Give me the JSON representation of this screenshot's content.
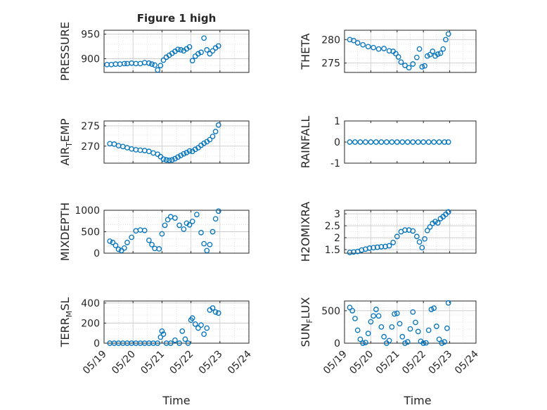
{
  "title": "Figure 1 high",
  "x_axis_label": "Time",
  "x_ticks": [
    "05/19",
    "05/20",
    "05/21",
    "05/22",
    "05/23",
    "05/24"
  ],
  "marker_color": "#0072BD",
  "chart_data": [
    {
      "type": "scatter",
      "ylabel": "PRESSURE",
      "ylabel_sub": null,
      "yticks": [
        900,
        950
      ],
      "ylim": [
        872,
        958
      ],
      "xlim": [
        0,
        5
      ],
      "grid": true,
      "x": [
        0.1,
        0.25,
        0.4,
        0.55,
        0.7,
        0.8,
        0.95,
        1.1,
        1.25,
        1.4,
        1.55,
        1.65,
        1.75,
        1.85,
        1.95,
        2.05,
        2.15,
        2.25,
        2.35,
        2.45,
        2.55,
        2.65,
        2.75,
        2.85,
        2.95,
        3.05,
        3.15,
        3.25,
        3.35,
        3.45,
        3.55,
        3.65,
        3.75,
        3.85,
        3.95
      ],
      "values": [
        888,
        888,
        889,
        889,
        890,
        890,
        891,
        890,
        890,
        892,
        891,
        889,
        887,
        877,
        886,
        897,
        903,
        907,
        911,
        915,
        919,
        918,
        916,
        920,
        924,
        896,
        905,
        910,
        913,
        942,
        918,
        910,
        916,
        922,
        926
      ]
    },
    {
      "type": "scatter",
      "ylabel": "THETA",
      "ylabel_sub": null,
      "yticks": [
        275,
        280
      ],
      "ylim": [
        273,
        282
      ],
      "xlim": [
        0,
        5
      ],
      "grid": true,
      "x": [
        0.2,
        0.35,
        0.5,
        0.7,
        0.9,
        1.1,
        1.3,
        1.5,
        1.7,
        1.85,
        1.95,
        2.05,
        2.15,
        2.3,
        2.45,
        2.6,
        2.75,
        2.85,
        2.95,
        3.05,
        3.15,
        3.25,
        3.35,
        3.45,
        3.55,
        3.65,
        3.75,
        3.85,
        3.95
      ],
      "values": [
        280.0,
        279.8,
        279.3,
        278.9,
        278.5,
        278.3,
        278.0,
        278.1,
        277.6,
        277.5,
        277.0,
        276.3,
        275.2,
        274.5,
        274.0,
        274.8,
        276.2,
        278.0,
        274.2,
        274.4,
        276.5,
        276.8,
        277.5,
        276.5,
        276.9,
        277.1,
        278.0,
        280.0,
        281.2
      ]
    },
    {
      "type": "scatter",
      "ylabel": "AIR",
      "ylabel_sub": "T",
      "ylabel_rest": "EMP",
      "yticks": [
        270,
        275
      ],
      "ylim": [
        265.8,
        276.2
      ],
      "xlim": [
        0,
        5
      ],
      "grid": true,
      "x": [
        0.2,
        0.35,
        0.5,
        0.65,
        0.8,
        0.95,
        1.1,
        1.25,
        1.4,
        1.55,
        1.7,
        1.85,
        1.95,
        2.05,
        2.15,
        2.25,
        2.35,
        2.45,
        2.55,
        2.65,
        2.75,
        2.85,
        2.95,
        3.05,
        3.15,
        3.25,
        3.35,
        3.45,
        3.55,
        3.65,
        3.75,
        3.85,
        3.95
      ],
      "values": [
        270.6,
        270.5,
        270.1,
        269.9,
        269.6,
        269.3,
        269.1,
        269.0,
        268.9,
        268.7,
        268.3,
        268.0,
        267.4,
        266.8,
        266.6,
        266.5,
        266.6,
        266.9,
        267.3,
        267.7,
        268.1,
        268.4,
        268.8,
        268.7,
        269.2,
        269.6,
        270.2,
        270.7,
        271.1,
        271.6,
        272.4,
        273.6,
        275.2
      ]
    },
    {
      "type": "scatter",
      "ylabel": "RAINFALL",
      "ylabel_sub": null,
      "yticks": [
        -1,
        0,
        1
      ],
      "ylim": [
        -1,
        1
      ],
      "xlim": [
        0,
        5
      ],
      "grid": false,
      "x": [
        0.2,
        0.4,
        0.6,
        0.8,
        1.0,
        1.2,
        1.4,
        1.6,
        1.8,
        2.0,
        2.2,
        2.4,
        2.6,
        2.8,
        3.0,
        3.2,
        3.4,
        3.6,
        3.8,
        3.95
      ],
      "values": [
        0,
        0,
        0,
        0,
        0,
        0,
        0,
        0,
        0,
        0,
        0,
        0,
        0,
        0,
        0,
        0,
        0,
        0,
        0,
        0
      ]
    },
    {
      "type": "scatter",
      "ylabel": "MIXDEPTH",
      "ylabel_sub": null,
      "yticks": [
        0,
        500,
        1000
      ],
      "ylim": [
        0,
        1000
      ],
      "xlim": [
        0,
        5
      ],
      "grid": true,
      "x": [
        0.2,
        0.3,
        0.4,
        0.5,
        0.6,
        0.7,
        0.8,
        0.95,
        1.1,
        1.25,
        1.4,
        1.55,
        1.65,
        1.75,
        1.9,
        2.0,
        2.1,
        2.2,
        2.3,
        2.45,
        2.6,
        2.75,
        2.85,
        2.95,
        3.05,
        3.2,
        3.35,
        3.45,
        3.55,
        3.65,
        3.75,
        3.85,
        3.95
      ],
      "values": [
        280,
        250,
        180,
        90,
        60,
        120,
        250,
        370,
        520,
        540,
        530,
        300,
        200,
        110,
        100,
        450,
        650,
        780,
        850,
        820,
        650,
        560,
        700,
        660,
        740,
        900,
        480,
        220,
        60,
        200,
        500,
        800,
        980
      ]
    },
    {
      "type": "scatter",
      "ylabel": "H2OMIXRA",
      "ylabel_sub": null,
      "yticks": [
        1.5,
        2,
        2.5,
        3
      ],
      "ylim": [
        1.35,
        3.15
      ],
      "xlim": [
        0,
        5
      ],
      "grid": true,
      "x": [
        0.2,
        0.35,
        0.5,
        0.65,
        0.8,
        0.95,
        1.1,
        1.25,
        1.4,
        1.55,
        1.7,
        1.85,
        2.0,
        2.15,
        2.3,
        2.45,
        2.6,
        2.75,
        2.85,
        2.95,
        3.05,
        3.15,
        3.25,
        3.35,
        3.45,
        3.55,
        3.65,
        3.75,
        3.85,
        3.95
      ],
      "values": [
        1.38,
        1.4,
        1.42,
        1.48,
        1.52,
        1.56,
        1.58,
        1.6,
        1.62,
        1.63,
        1.66,
        1.8,
        2.05,
        2.25,
        2.32,
        2.32,
        2.28,
        2.05,
        1.82,
        1.58,
        1.95,
        2.3,
        2.45,
        2.6,
        2.68,
        2.62,
        2.8,
        2.88,
        2.98,
        3.08
      ]
    },
    {
      "type": "scatter",
      "ylabel": "TERR",
      "ylabel_sub": "M",
      "ylabel_rest": "SL",
      "yticks": [
        0,
        200,
        400
      ],
      "ylim": [
        0,
        420
      ],
      "xlim": [
        0,
        5
      ],
      "grid": true,
      "x": [
        0.2,
        0.35,
        0.5,
        0.65,
        0.8,
        0.95,
        1.1,
        1.25,
        1.4,
        1.55,
        1.7,
        1.85,
        1.95,
        2.0,
        2.05,
        2.15,
        2.3,
        2.45,
        2.6,
        2.7,
        2.8,
        2.9,
        3.0,
        3.05,
        3.15,
        3.25,
        3.35,
        3.45,
        3.55,
        3.65,
        3.75,
        3.85,
        3.95
      ],
      "values": [
        0,
        0,
        0,
        0,
        0,
        0,
        0,
        0,
        0,
        0,
        0,
        0,
        60,
        120,
        90,
        0,
        0,
        30,
        0,
        120,
        40,
        0,
        230,
        250,
        190,
        150,
        180,
        90,
        150,
        330,
        350,
        310,
        300
      ]
    },
    {
      "type": "scatter",
      "ylabel": "SUN",
      "ylabel_sub": "F",
      "ylabel_rest": "LUX",
      "yticks": [
        0,
        500
      ],
      "ylim": [
        0,
        650
      ],
      "xlim": [
        0,
        5
      ],
      "grid": true,
      "x": [
        0.2,
        0.3,
        0.4,
        0.5,
        0.6,
        0.7,
        0.8,
        0.9,
        1.0,
        1.1,
        1.2,
        1.3,
        1.4,
        1.5,
        1.6,
        1.7,
        1.8,
        1.9,
        2.0,
        2.1,
        2.2,
        2.3,
        2.4,
        2.5,
        2.6,
        2.7,
        2.8,
        2.9,
        3.0,
        3.1,
        3.2,
        3.3,
        3.4,
        3.5,
        3.6,
        3.7,
        3.8,
        3.9,
        3.95
      ],
      "values": [
        550,
        500,
        380,
        200,
        60,
        0,
        10,
        150,
        330,
        420,
        520,
        420,
        250,
        100,
        0,
        40,
        250,
        450,
        460,
        300,
        100,
        0,
        20,
        220,
        480,
        320,
        180,
        30,
        0,
        5,
        200,
        520,
        540,
        260,
        60,
        0,
        20,
        230,
        620
      ]
    }
  ]
}
